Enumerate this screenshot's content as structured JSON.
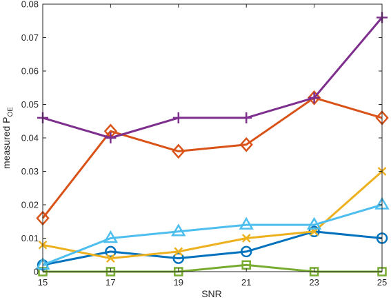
{
  "chart_data": {
    "type": "line",
    "title": "",
    "xlabel": "SNR",
    "ylabel": "measured P",
    "ylabel_subscript": "OE",
    "xlim": [
      15,
      25
    ],
    "ylim": [
      0,
      0.08
    ],
    "grid": false,
    "legend": "none",
    "x": [
      15,
      17,
      19,
      21,
      23,
      25
    ],
    "xticks": [
      "15",
      "17",
      "19",
      "21",
      "23",
      "25"
    ],
    "yticks": [
      {
        "v": 0,
        "label": "0"
      },
      {
        "v": 0.01,
        "label": "0.01"
      },
      {
        "v": 0.02,
        "label": "0.02"
      },
      {
        "v": 0.03,
        "label": "0.03"
      },
      {
        "v": 0.04,
        "label": "0.04"
      },
      {
        "v": 0.05,
        "label": "0.05"
      },
      {
        "v": 0.06,
        "label": "0.06"
      },
      {
        "v": 0.07,
        "label": "0.07"
      },
      {
        "v": 0.08,
        "label": "0.08"
      }
    ],
    "series": [
      {
        "marker": "circle",
        "color": "#0072BD",
        "values": [
          0.002,
          0.006,
          0.004,
          0.006,
          0.012,
          0.01
        ]
      },
      {
        "marker": "diamond",
        "color": "#D95319",
        "values": [
          0.016,
          0.042,
          0.036,
          0.038,
          0.052,
          0.046
        ]
      },
      {
        "marker": "x",
        "color": "#EDB120",
        "values": [
          0.008,
          0.004,
          0.006,
          0.01,
          0.012,
          0.03
        ]
      },
      {
        "marker": "plus",
        "color": "#7E2F8E",
        "values": [
          0.046,
          0.04,
          0.046,
          0.046,
          0.052,
          0.076
        ]
      },
      {
        "marker": "square",
        "color": "#77AC30",
        "values": [
          0.0,
          0.0,
          0.0,
          0.002,
          0.0,
          0.0
        ]
      },
      {
        "marker": "triangle",
        "color": "#4DBEEE",
        "values": [
          0.002,
          0.01,
          0.012,
          0.014,
          0.014,
          0.02
        ]
      }
    ]
  }
}
